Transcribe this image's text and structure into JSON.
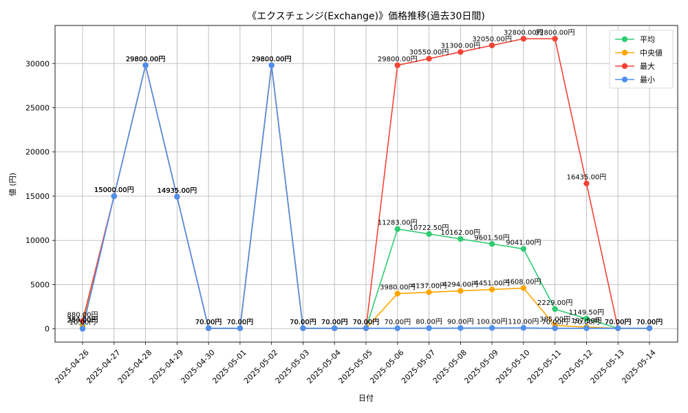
{
  "chart_data": {
    "type": "line",
    "title": "《エクスチェンジ(Exchange)》価格推移(過去30日間)",
    "xlabel": "日付",
    "ylabel": "値 (円)",
    "ylim": [
      -1500,
      34300
    ],
    "yticks": [
      0,
      5000,
      10000,
      15000,
      20000,
      25000,
      30000
    ],
    "grid": true,
    "legend_position": "top-right",
    "label_suffix": "円",
    "categories": [
      "2025-04-26",
      "2025-04-27",
      "2025-04-28",
      "2025-04-29",
      "2025-04-30",
      "2025-05-01",
      "2025-05-02",
      "2025-05-03",
      "2025-05-04",
      "2025-05-05",
      "2025-05-06",
      "2025-05-07",
      "2025-05-08",
      "2025-05-09",
      "2025-05-10",
      "2025-05-11",
      "2025-05-12",
      "2025-05-13",
      "2025-05-14"
    ],
    "series": [
      {
        "name": "平均",
        "color": "#2ecc71",
        "values": [
          384,
          15000,
          29800,
          14935,
          70,
          70,
          29800,
          70,
          70,
          70,
          11283,
          10722.5,
          10162,
          9601.5,
          9041,
          2229,
          1149.5,
          70,
          70
        ]
      },
      {
        "name": "中央値",
        "color": "#ffa500",
        "values": [
          250,
          15000,
          29800,
          14935,
          70,
          70,
          29800,
          70,
          70,
          70,
          3980,
          4137,
          4294,
          4451,
          4608,
          385,
          197.5,
          70,
          70
        ]
      },
      {
        "name": "最大",
        "color": "#f44336",
        "values": [
          880,
          15000,
          29800,
          14935,
          70,
          70,
          29800,
          70,
          70,
          70,
          29800,
          30550,
          31300,
          32050,
          32800,
          32800,
          16435,
          70,
          70
        ]
      },
      {
        "name": "最小",
        "color": "#4e8ff0",
        "values": [
          10,
          15000,
          29800,
          14935,
          70,
          70,
          29800,
          70,
          70,
          70,
          70,
          80,
          90,
          100,
          110,
          70,
          70,
          70,
          70
        ]
      }
    ]
  }
}
